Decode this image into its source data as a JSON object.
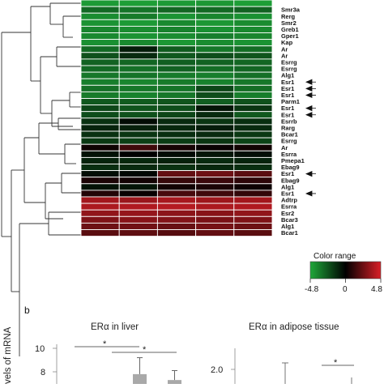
{
  "heatmap": {
    "rows": [
      {
        "gene": "",
        "arrow": false,
        "vals": [
          -4.4,
          -4.5,
          -4.4,
          -4.3,
          -4.5
        ]
      },
      {
        "gene": "Smr3a",
        "arrow": false,
        "vals": [
          -3.0,
          -3.3,
          -2.9,
          -3.0,
          -2.8
        ]
      },
      {
        "gene": "Rerg",
        "arrow": false,
        "vals": [
          -4.0,
          -3.5,
          -4.2,
          -3.8,
          -4.1
        ]
      },
      {
        "gene": "Smr2",
        "arrow": false,
        "vals": [
          -4.2,
          -4.4,
          -3.9,
          -4.3,
          -4.0
        ]
      },
      {
        "gene": "Greb1",
        "arrow": false,
        "vals": [
          -3.8,
          -4.0,
          -3.7,
          -4.1,
          -3.9
        ]
      },
      {
        "gene": "Gper1",
        "arrow": false,
        "vals": [
          -3.9,
          -4.2,
          -4.0,
          -3.6,
          -3.8
        ]
      },
      {
        "gene": "Kap",
        "arrow": false,
        "vals": [
          -4.1,
          -3.9,
          -4.3,
          -4.0,
          -4.2
        ]
      },
      {
        "gene": "Ar",
        "arrow": false,
        "vals": [
          -3.0,
          -0.8,
          -2.6,
          -3.4,
          -3.1
        ]
      },
      {
        "gene": "Ar",
        "arrow": false,
        "vals": [
          -2.3,
          -1.2,
          -2.5,
          -2.2,
          -2.4
        ]
      },
      {
        "gene": "Esrrg",
        "arrow": false,
        "vals": [
          -2.8,
          -2.9,
          -2.7,
          -2.8,
          -2.9
        ]
      },
      {
        "gene": "Esrrg",
        "arrow": false,
        "vals": [
          -3.0,
          -3.2,
          -2.8,
          -3.1,
          -2.9
        ]
      },
      {
        "gene": "Alg1",
        "arrow": false,
        "vals": [
          -3.4,
          -3.3,
          -3.5,
          -3.6,
          -3.2
        ]
      },
      {
        "gene": "Esr1",
        "arrow": true,
        "vals": [
          -3.6,
          -3.8,
          -3.5,
          -3.7,
          -3.4
        ]
      },
      {
        "gene": "Esr1",
        "arrow": true,
        "vals": [
          -3.2,
          -3.4,
          -3.3,
          -2.0,
          -3.1
        ]
      },
      {
        "gene": "Esr1",
        "arrow": true,
        "vals": [
          -3.5,
          -3.7,
          -3.4,
          -2.2,
          -3.6
        ]
      },
      {
        "gene": "Parm1",
        "arrow": false,
        "vals": [
          -2.5,
          -2.6,
          -2.4,
          -2.7,
          -2.3
        ]
      },
      {
        "gene": "Esr1",
        "arrow": true,
        "vals": [
          -2.0,
          -2.4,
          -2.2,
          -0.6,
          -1.5
        ]
      },
      {
        "gene": "Esr1",
        "arrow": true,
        "vals": [
          -2.2,
          -2.3,
          -2.0,
          -1.2,
          -2.5
        ]
      },
      {
        "gene": "Esrrb",
        "arrow": false,
        "vals": [
          -1.4,
          -0.3,
          -1.2,
          -1.5,
          -1.3
        ]
      },
      {
        "gene": "Rarg",
        "arrow": false,
        "vals": [
          -1.0,
          -0.9,
          -1.1,
          -0.8,
          -1.2
        ]
      },
      {
        "gene": "Bcar1",
        "arrow": false,
        "vals": [
          -1.4,
          -1.5,
          -1.3,
          -1.2,
          -1.6
        ]
      },
      {
        "gene": "Esrrg",
        "arrow": false,
        "vals": [
          -1.6,
          -1.8,
          -1.7,
          -1.5,
          -1.9
        ]
      },
      {
        "gene": "Ar",
        "arrow": false,
        "vals": [
          0.3,
          1.4,
          0.5,
          0.2,
          0.4
        ]
      },
      {
        "gene": "Esrra",
        "arrow": false,
        "vals": [
          -0.5,
          0.0,
          -0.3,
          -0.6,
          -0.4
        ]
      },
      {
        "gene": "Pmepa1",
        "arrow": false,
        "vals": [
          -1.0,
          -1.1,
          -0.9,
          -1.2,
          -1.0
        ]
      },
      {
        "gene": "Ebag9",
        "arrow": false,
        "vals": [
          -1.3,
          -1.2,
          -1.4,
          -1.1,
          -1.3
        ]
      },
      {
        "gene": "Esr1",
        "arrow": true,
        "vals": [
          -0.4,
          -0.2,
          2.2,
          2.4,
          2.0
        ]
      },
      {
        "gene": "Ebag9",
        "arrow": false,
        "vals": [
          0.6,
          0.4,
          1.2,
          1.3,
          1.0
        ]
      },
      {
        "gene": "Alg1",
        "arrow": false,
        "vals": [
          -0.5,
          -0.6,
          0.4,
          0.6,
          0.3
        ]
      },
      {
        "gene": "Esr1",
        "arrow": true,
        "vals": [
          0.8,
          0.2,
          1.6,
          1.4,
          1.1
        ]
      },
      {
        "gene": "Adtrp",
        "arrow": false,
        "vals": [
          3.6,
          3.4,
          3.7,
          3.5,
          3.6
        ]
      },
      {
        "gene": "Esrra",
        "arrow": false,
        "vals": [
          3.8,
          3.9,
          4.0,
          3.8,
          3.9
        ]
      },
      {
        "gene": "Esr2",
        "arrow": false,
        "vals": [
          3.2,
          3.3,
          3.1,
          3.0,
          3.2
        ]
      },
      {
        "gene": "Bcar3",
        "arrow": false,
        "vals": [
          2.8,
          3.0,
          2.9,
          2.7,
          2.8
        ]
      },
      {
        "gene": "Alg1",
        "arrow": false,
        "vals": [
          2.4,
          2.5,
          2.3,
          2.6,
          2.4
        ]
      },
      {
        "gene": "Bcar1",
        "arrow": false,
        "vals": [
          2.0,
          2.1,
          1.9,
          2.2,
          2.0
        ]
      }
    ]
  },
  "colorbar": {
    "title": "Color range",
    "min_label": "-4.8",
    "mid_label": "0",
    "max_label": "4.8",
    "low_color": "#1fa83a",
    "mid_color": "#000000",
    "high_color": "#d91f27"
  },
  "panel_b": {
    "letter": "b",
    "ylabel": "vels of mRNA",
    "liver_title": "ERα in liver",
    "adipose_title": "ERα in adipose tissue",
    "liver_yticks": [
      "10",
      "8"
    ],
    "adipose_yticks": [
      "2.0"
    ],
    "sig_marker": "*",
    "liver_bars": [
      7.8,
      7.3
    ],
    "liver_bar_err": [
      1.4,
      0.8
    ],
    "bar_color": "#a9a9a9",
    "adipose_errorbar_upper": 2.1
  }
}
